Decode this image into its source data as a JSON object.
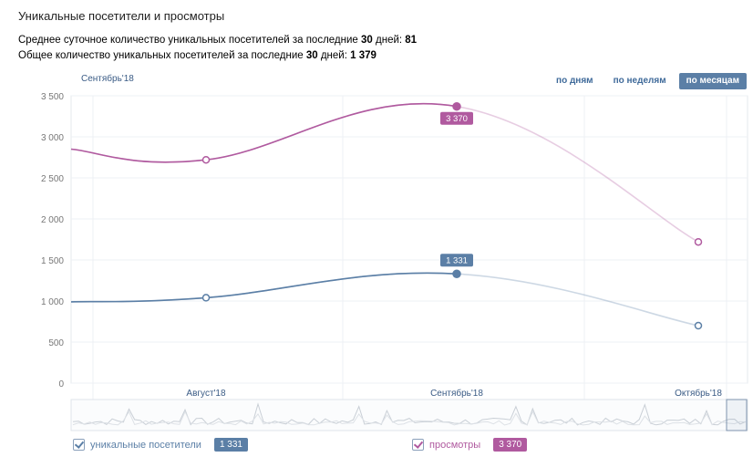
{
  "title": "Уникальные посетители и просмотры",
  "stats": {
    "avg_prefix": "Среднее суточное количество уникальных посетителей за последние ",
    "avg_days": "30",
    "avg_mid": " дней: ",
    "avg_value": "81",
    "total_prefix": "Общее количество уникальных посетителей за последние ",
    "total_days": "30",
    "total_mid": " дней: ",
    "total_value": "1 379"
  },
  "period_label": "Сентябрь'18",
  "buttons": {
    "by_days": "по дням",
    "by_weeks": "по неделям",
    "by_months": "по месяцам"
  },
  "legend": {
    "visitors_label": "уникальные посетители",
    "visitors_value": "1 331",
    "views_label": "просмотры",
    "views_value": "3 370"
  },
  "chart_data": {
    "type": "line",
    "categories": [
      "Август'18",
      "Сентябрь'18",
      "Октябрь'18"
    ],
    "ylim": [
      0,
      3500
    ],
    "yticks": [
      0,
      500,
      1000,
      1500,
      2000,
      2500,
      3000,
      3500
    ],
    "ytick_labels": [
      "0",
      "500",
      "1 000",
      "1 500",
      "2 000",
      "2 500",
      "3 000",
      "3 500"
    ],
    "grid": true,
    "legend_position": "bottom",
    "series": [
      {
        "name": "просмотры",
        "color": "#b05a9f",
        "values": [
          2720,
          3370,
          1720
        ],
        "start_value": 2850,
        "highlight_index": 1,
        "highlight_label": "3 370"
      },
      {
        "name": "уникальные посетители",
        "color": "#5b7fa6",
        "values": [
          1040,
          1331,
          700
        ],
        "start_value": 990,
        "highlight_index": 1,
        "highlight_label": "1 331"
      }
    ]
  }
}
